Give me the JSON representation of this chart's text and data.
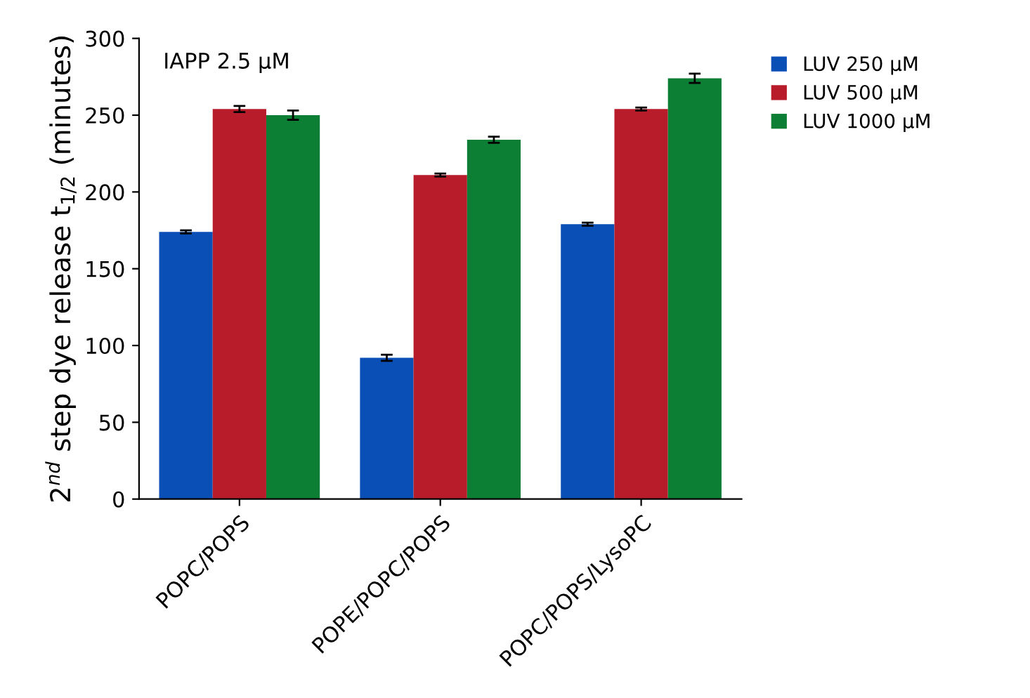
{
  "chart_data": {
    "type": "bar",
    "ylabel": "2$^{nd}$ step dye release t$_{1/2}$ (minutes)",
    "categories": [
      "POPC/POPS",
      "POPE/POPC/POPS",
      "POPC/POPS/LysoPC"
    ],
    "series": [
      {
        "name": "LUV 250 μM",
        "color": "#0a4fb5",
        "values": [
          174,
          92,
          179
        ],
        "errors": [
          1,
          2,
          1
        ]
      },
      {
        "name": "LUV 500 μM",
        "color": "#b81c2a",
        "values": [
          254,
          211,
          254
        ],
        "errors": [
          2,
          1,
          1
        ]
      },
      {
        "name": "LUV 1000 μM",
        "color": "#0d7f35",
        "values": [
          250,
          234,
          274
        ],
        "errors": [
          3,
          2,
          3
        ]
      }
    ],
    "annotations": [
      "IAPP 2.5 μM"
    ],
    "ylim": [
      0,
      300
    ],
    "yticks": [
      0,
      50,
      100,
      150,
      200,
      250,
      300
    ],
    "legend": "right",
    "grid": false
  }
}
